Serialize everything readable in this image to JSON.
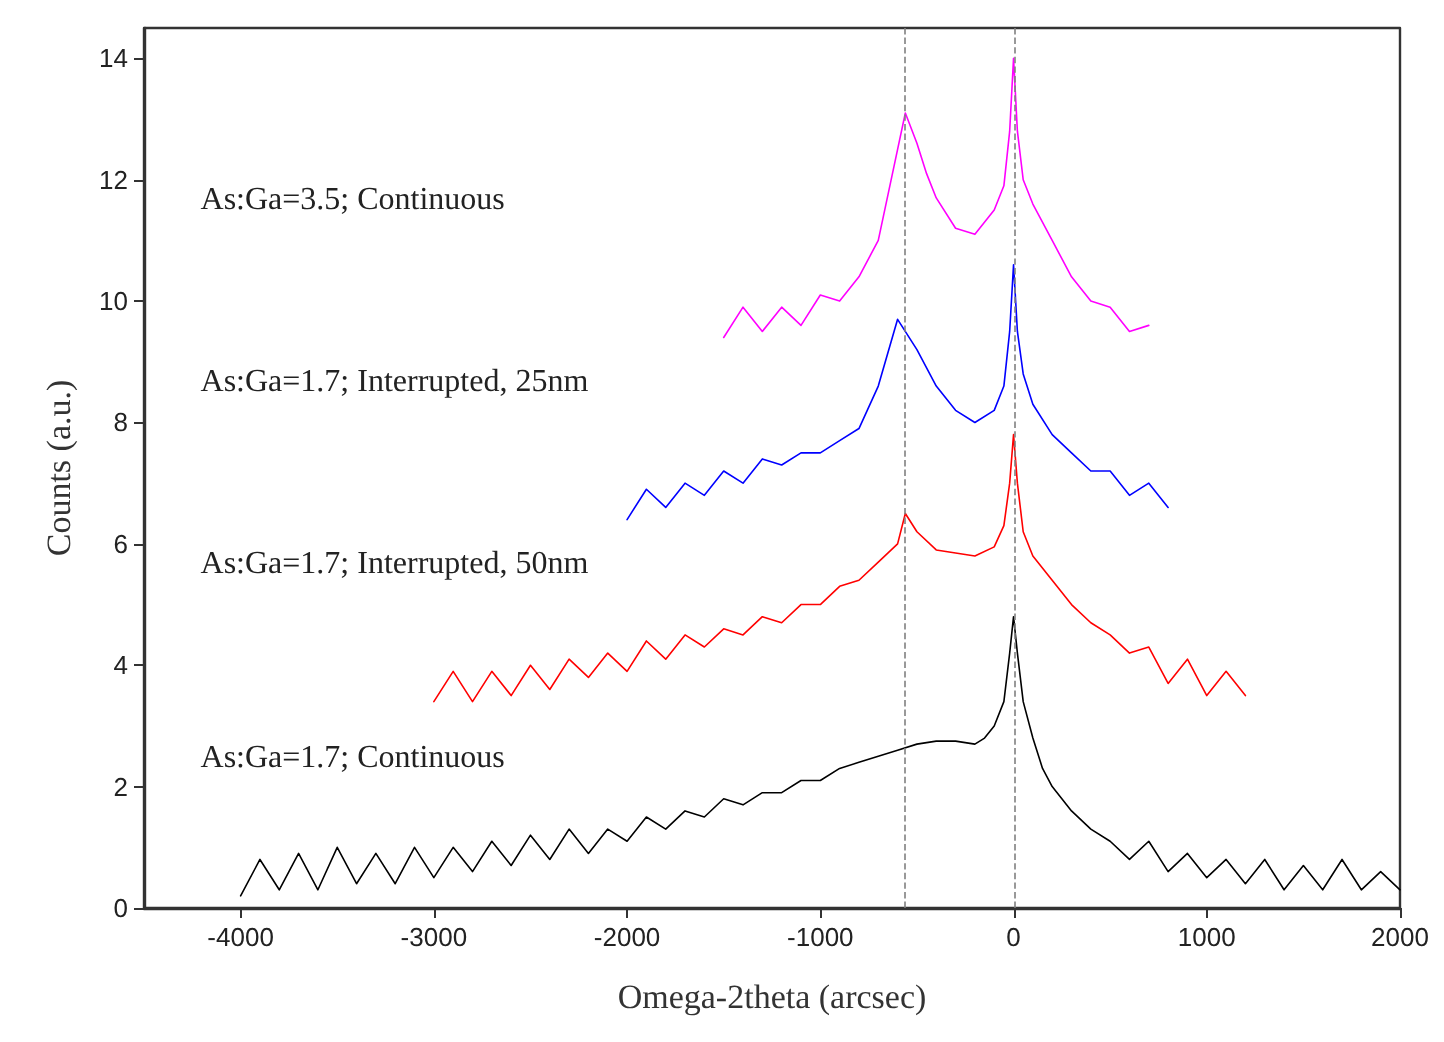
{
  "chart_data": {
    "type": "line",
    "xlabel": "Omega-2theta (arcsec)",
    "ylabel": "Counts (a.u.)",
    "xlim": [
      -4500,
      2000
    ],
    "xticks": [
      -4000,
      -3000,
      -2000,
      -1000,
      0,
      1000,
      2000
    ],
    "ylim": [
      0,
      14.5
    ],
    "yticks": [
      0,
      2,
      4,
      6,
      8,
      10,
      12,
      14
    ],
    "grid": false,
    "marker": "none",
    "line_style": "solid",
    "series": [
      {
        "color": "#000000",
        "x": [
          -4000,
          -3900,
          -3800,
          -3700,
          -3600,
          -3500,
          -3400,
          -3300,
          -3200,
          -3100,
          -3000,
          -2900,
          -2800,
          -2700,
          -2600,
          -2500,
          -2400,
          -2300,
          -2200,
          -2100,
          -2000,
          -1900,
          -1800,
          -1700,
          -1600,
          -1500,
          -1400,
          -1300,
          -1200,
          -1100,
          -1000,
          -900,
          -800,
          -700,
          -600,
          -500,
          -400,
          -300,
          -200,
          -150,
          -100,
          -50,
          -20,
          0,
          20,
          50,
          100,
          150,
          200,
          300,
          400,
          500,
          600,
          700,
          800,
          900,
          1000,
          1100,
          1200,
          1300,
          1400,
          1500,
          1600,
          1700,
          1800,
          1900,
          2000
        ],
        "values": [
          0.2,
          0.8,
          0.3,
          0.9,
          0.3,
          1.0,
          0.4,
          0.9,
          0.4,
          1.0,
          0.5,
          1.0,
          0.6,
          1.1,
          0.7,
          1.2,
          0.8,
          1.3,
          0.9,
          1.3,
          1.1,
          1.5,
          1.3,
          1.6,
          1.5,
          1.8,
          1.7,
          1.9,
          1.9,
          2.1,
          2.1,
          2.3,
          2.4,
          2.5,
          2.6,
          2.7,
          2.75,
          2.75,
          2.7,
          2.8,
          3.0,
          3.4,
          4.2,
          4.8,
          4.2,
          3.4,
          2.8,
          2.3,
          2.0,
          1.6,
          1.3,
          1.1,
          0.8,
          1.1,
          0.6,
          0.9,
          0.5,
          0.8,
          0.4,
          0.8,
          0.3,
          0.7,
          0.3,
          0.8,
          0.3,
          0.6,
          0.3
        ]
      },
      {
        "color": "#ff0000",
        "x": [
          -3000,
          -2900,
          -2800,
          -2700,
          -2600,
          -2500,
          -2400,
          -2300,
          -2200,
          -2100,
          -2000,
          -1900,
          -1800,
          -1700,
          -1600,
          -1500,
          -1400,
          -1300,
          -1200,
          -1100,
          -1000,
          -900,
          -800,
          -700,
          -600,
          -560,
          -500,
          -400,
          -300,
          -200,
          -100,
          -50,
          -20,
          0,
          20,
          50,
          100,
          200,
          300,
          400,
          500,
          600,
          700,
          800,
          900,
          1000,
          1100,
          1200
        ],
        "values": [
          3.4,
          3.9,
          3.4,
          3.9,
          3.5,
          4.0,
          3.6,
          4.1,
          3.8,
          4.2,
          3.9,
          4.4,
          4.1,
          4.5,
          4.3,
          4.6,
          4.5,
          4.8,
          4.7,
          5.0,
          5.0,
          5.3,
          5.4,
          5.7,
          6.0,
          6.5,
          6.2,
          5.9,
          5.85,
          5.8,
          5.95,
          6.3,
          7.0,
          7.8,
          7.0,
          6.2,
          5.8,
          5.4,
          5.0,
          4.7,
          4.5,
          4.2,
          4.3,
          3.7,
          4.1,
          3.5,
          3.9,
          3.5
        ]
      },
      {
        "color": "#0000ff",
        "x": [
          -2000,
          -1900,
          -1800,
          -1700,
          -1600,
          -1500,
          -1400,
          -1300,
          -1200,
          -1100,
          -1000,
          -900,
          -800,
          -700,
          -600,
          -500,
          -400,
          -300,
          -200,
          -100,
          -50,
          -20,
          0,
          20,
          50,
          100,
          200,
          300,
          400,
          500,
          600,
          700,
          800
        ],
        "values": [
          6.4,
          6.9,
          6.6,
          7.0,
          6.8,
          7.2,
          7.0,
          7.4,
          7.3,
          7.5,
          7.5,
          7.7,
          7.9,
          8.6,
          9.7,
          9.2,
          8.6,
          8.2,
          8.0,
          8.2,
          8.6,
          9.5,
          10.6,
          9.5,
          8.8,
          8.3,
          7.8,
          7.5,
          7.2,
          7.2,
          6.8,
          7.0,
          6.6
        ]
      },
      {
        "color": "#ff00ff",
        "x": [
          -1500,
          -1400,
          -1300,
          -1200,
          -1100,
          -1000,
          -900,
          -800,
          -700,
          -600,
          -560,
          -500,
          -450,
          -400,
          -300,
          -200,
          -100,
          -50,
          -20,
          0,
          20,
          50,
          100,
          200,
          300,
          400,
          500,
          600,
          700
        ],
        "values": [
          9.4,
          9.9,
          9.5,
          9.9,
          9.6,
          10.1,
          10.0,
          10.4,
          11.0,
          12.5,
          13.1,
          12.6,
          12.1,
          11.7,
          11.2,
          11.1,
          11.5,
          11.9,
          12.8,
          14.0,
          12.8,
          12.0,
          11.6,
          11.0,
          10.4,
          10.0,
          9.9,
          9.5,
          9.6
        ]
      }
    ],
    "annotations": [
      "As:Ga=1.7; Continuous",
      "As:Ga=1.7; Interrupted, 50nm",
      "As:Ga=1.7; Interrupted, 25nm",
      "As:Ga=3.5; Continuous"
    ],
    "ref_lines": [
      {
        "axis": "x",
        "value": -560,
        "color": "#808080",
        "line_style": "dashed"
      },
      {
        "axis": "x",
        "value": 0,
        "color": "#808080",
        "line_style": "dashed"
      }
    ]
  }
}
